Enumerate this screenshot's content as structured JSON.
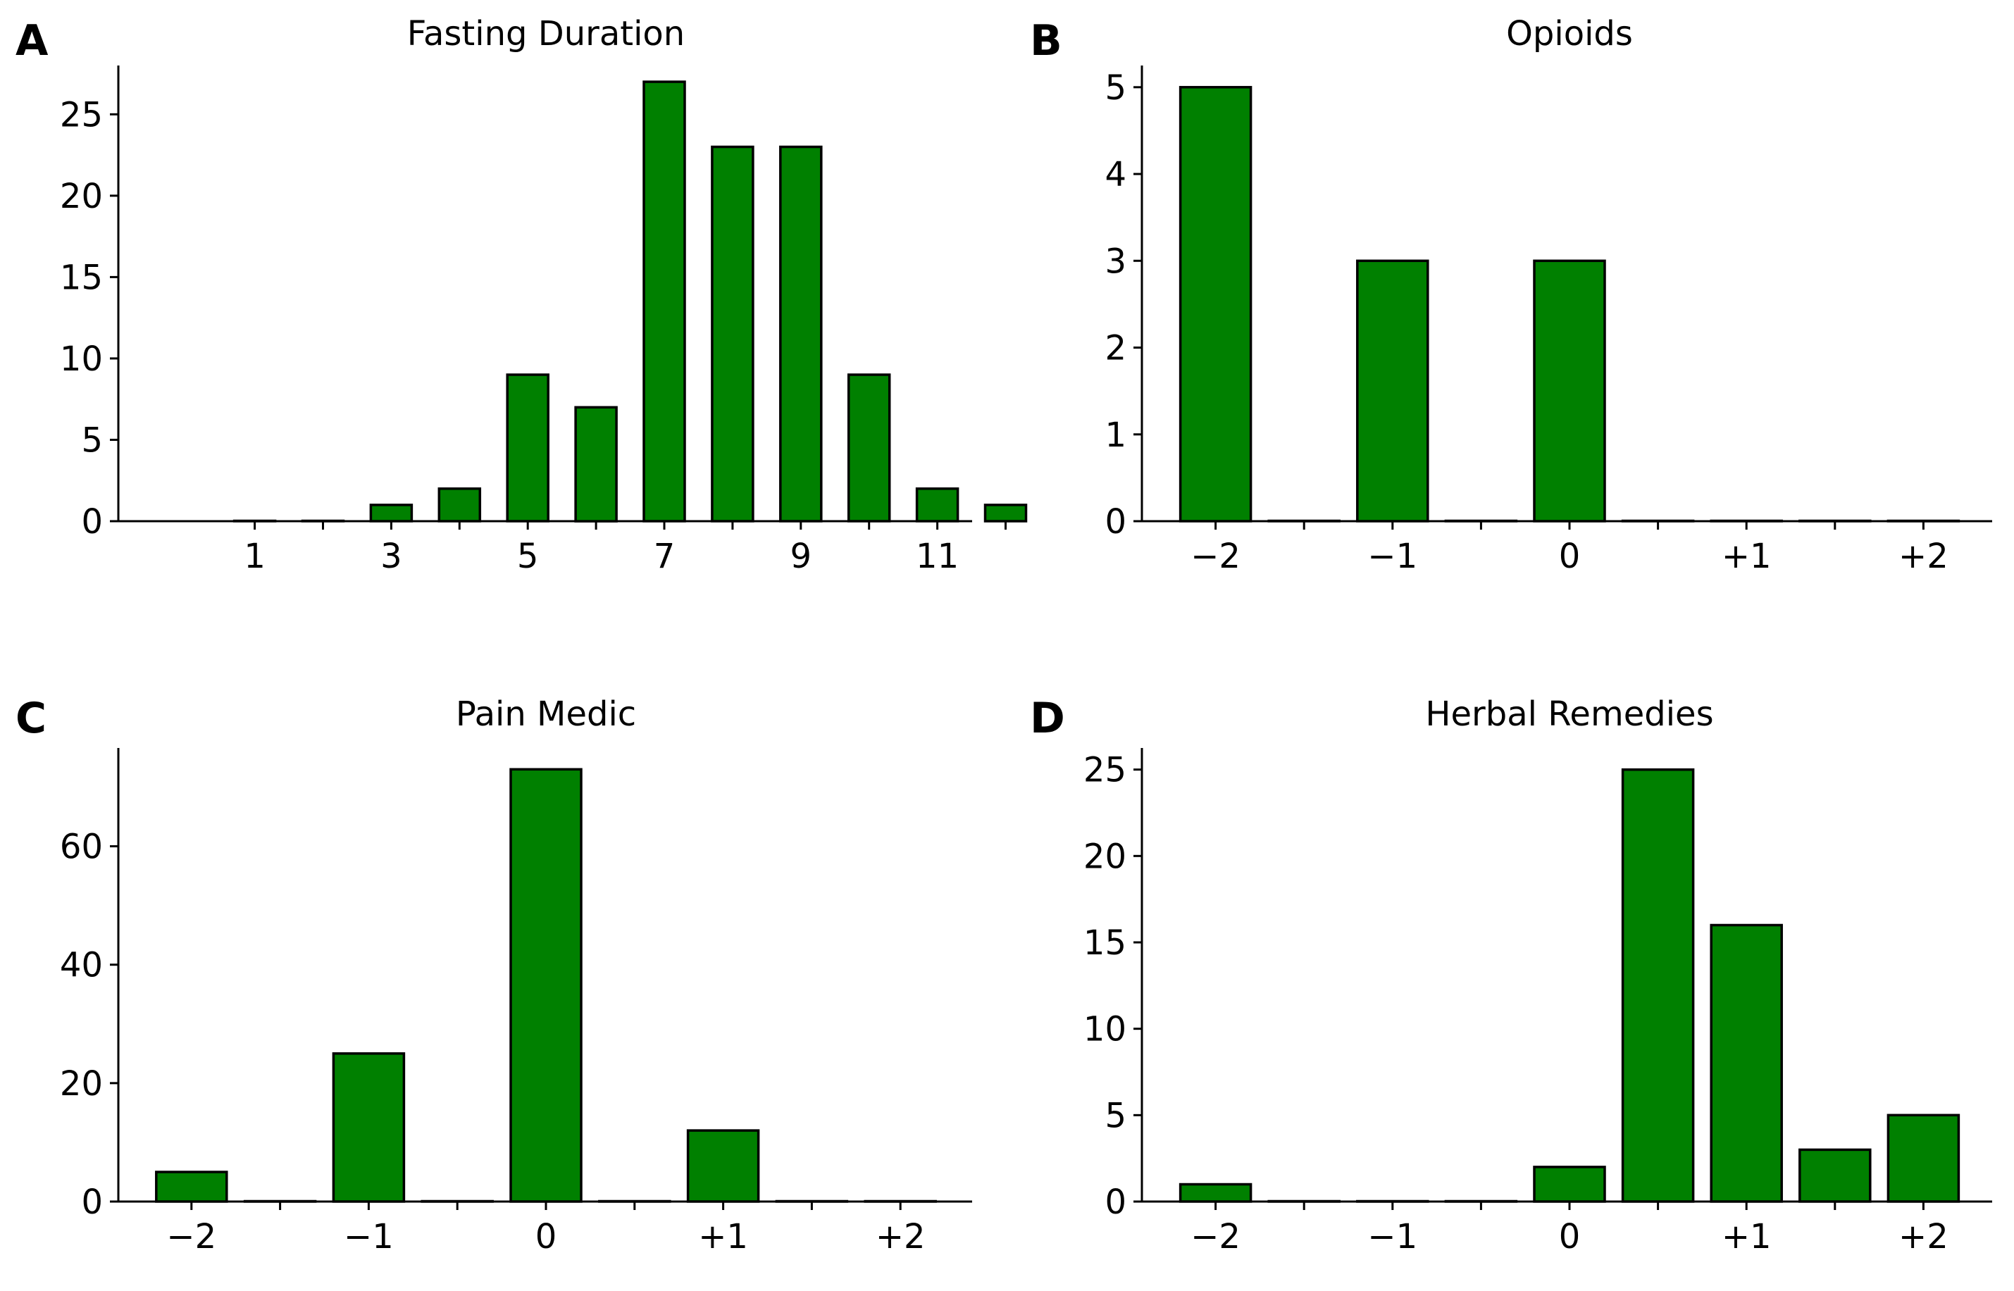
{
  "chart_data": [
    {
      "panel": "A",
      "type": "bar",
      "title": "Fasting Duration",
      "x": [
        1,
        2,
        3,
        4,
        5,
        6,
        7,
        8,
        9,
        10,
        11,
        12
      ],
      "values": [
        0,
        0,
        1,
        2,
        9,
        7,
        27,
        23,
        23,
        9,
        2,
        1
      ],
      "xticks": [
        "1",
        "3",
        "5",
        "7",
        "9",
        "11"
      ],
      "ylim": [
        0,
        28
      ],
      "yticks": [
        0,
        5,
        10,
        15,
        20,
        25
      ],
      "bar_color": "#008000"
    },
    {
      "panel": "B",
      "type": "bar",
      "title": "Opioids",
      "x": [
        -2,
        -1.5,
        -1,
        -0.5,
        0,
        0.5,
        1,
        1.5,
        2
      ],
      "values": [
        5,
        0,
        3,
        0,
        3,
        0,
        0,
        0,
        0
      ],
      "xticks": [
        "−2",
        "−1",
        "0",
        "+1",
        "+2"
      ],
      "ylim": [
        0,
        5.25
      ],
      "yticks": [
        0,
        1,
        2,
        3,
        4,
        5
      ],
      "bar_color": "#008000"
    },
    {
      "panel": "C",
      "type": "bar",
      "title": "Pain Medic",
      "x": [
        -2,
        -1.5,
        -1,
        -0.5,
        0,
        0.5,
        1,
        1.5,
        2
      ],
      "values": [
        5,
        0,
        25,
        0,
        73,
        0,
        12,
        0,
        0
      ],
      "xticks": [
        "−2",
        "−1",
        "0",
        "+1",
        "+2"
      ],
      "ylim": [
        0,
        76.6
      ],
      "yticks": [
        0,
        20,
        40,
        60
      ],
      "bar_color": "#008000"
    },
    {
      "panel": "D",
      "type": "bar",
      "title": "Herbal Remedies",
      "x": [
        -2,
        -1.5,
        -1,
        -0.5,
        0,
        0.5,
        1,
        1.5,
        2
      ],
      "values": [
        1,
        0,
        0,
        0,
        2,
        25,
        16,
        3,
        5
      ],
      "xticks": [
        "−2",
        "−1",
        "0",
        "+1",
        "+2"
      ],
      "ylim": [
        0,
        26.25
      ],
      "yticks": [
        0,
        5,
        10,
        15,
        20,
        25
      ],
      "bar_color": "#008000"
    }
  ]
}
